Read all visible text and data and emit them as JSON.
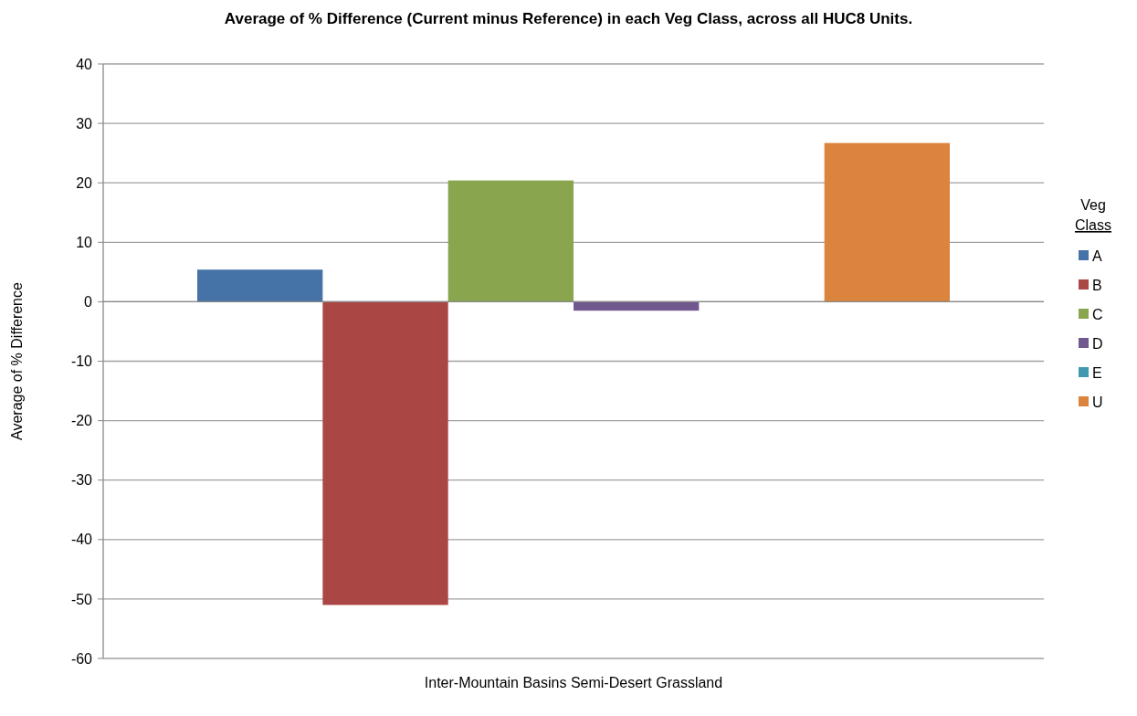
{
  "chart_data": {
    "type": "bar",
    "title": "Average of % Difference (Current minus Reference) in each Veg Class, across all HUC8 Units.",
    "ylabel": "Average of % Difference",
    "legend_title": "Veg Class",
    "categories": [
      "Inter-Mountain Basins Semi-Desert Grassland"
    ],
    "series": [
      {
        "name": "A",
        "color": "#4572a7",
        "values": [
          5.4
        ]
      },
      {
        "name": "B",
        "color": "#aa4643",
        "values": [
          -51
        ]
      },
      {
        "name": "C",
        "color": "#89a54e",
        "values": [
          20.4
        ]
      },
      {
        "name": "D",
        "color": "#71588f",
        "values": [
          -1.5
        ]
      },
      {
        "name": "E",
        "color": "#4198af",
        "values": [
          0
        ]
      },
      {
        "name": "U",
        "color": "#db843d",
        "values": [
          26.7
        ]
      }
    ],
    "ylim": [
      -60,
      40
    ],
    "yticks": [
      -60,
      -50,
      -40,
      -30,
      -20,
      -10,
      0,
      10,
      20,
      30,
      40
    ],
    "grid": "y",
    "legend": "right"
  }
}
